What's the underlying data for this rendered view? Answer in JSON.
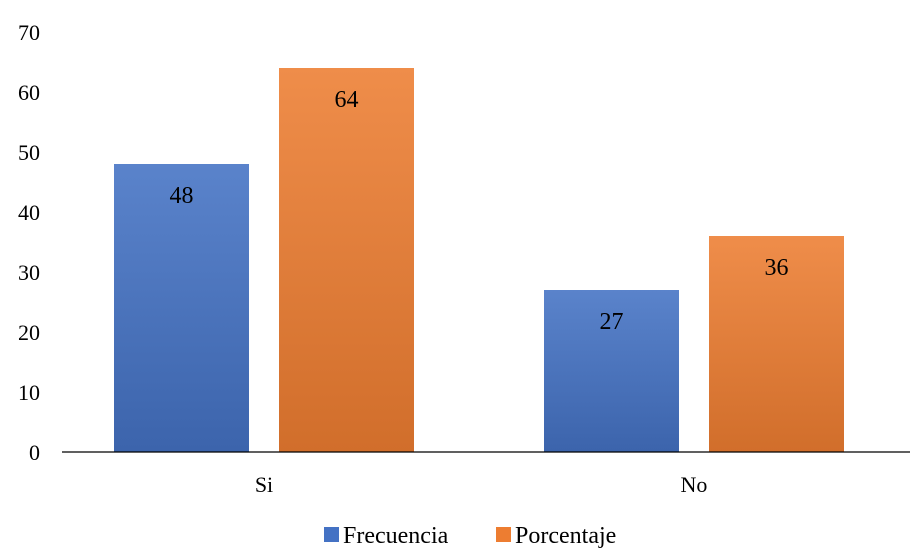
{
  "chart_data": {
    "type": "bar",
    "categories": [
      "Si",
      "No"
    ],
    "series": [
      {
        "name": "Frecuencia",
        "values": [
          48,
          27
        ],
        "color": "#4472C4"
      },
      {
        "name": "Porcentaje",
        "values": [
          64,
          36
        ],
        "color": "#ED7D31"
      }
    ],
    "title": "",
    "xlabel": "",
    "ylabel": "",
    "ylim": [
      0,
      70
    ],
    "yticks": [
      0,
      10,
      20,
      30,
      40,
      50,
      60,
      70
    ],
    "grid": false,
    "legend": "bottom-center",
    "data_labels": "inside-top"
  }
}
